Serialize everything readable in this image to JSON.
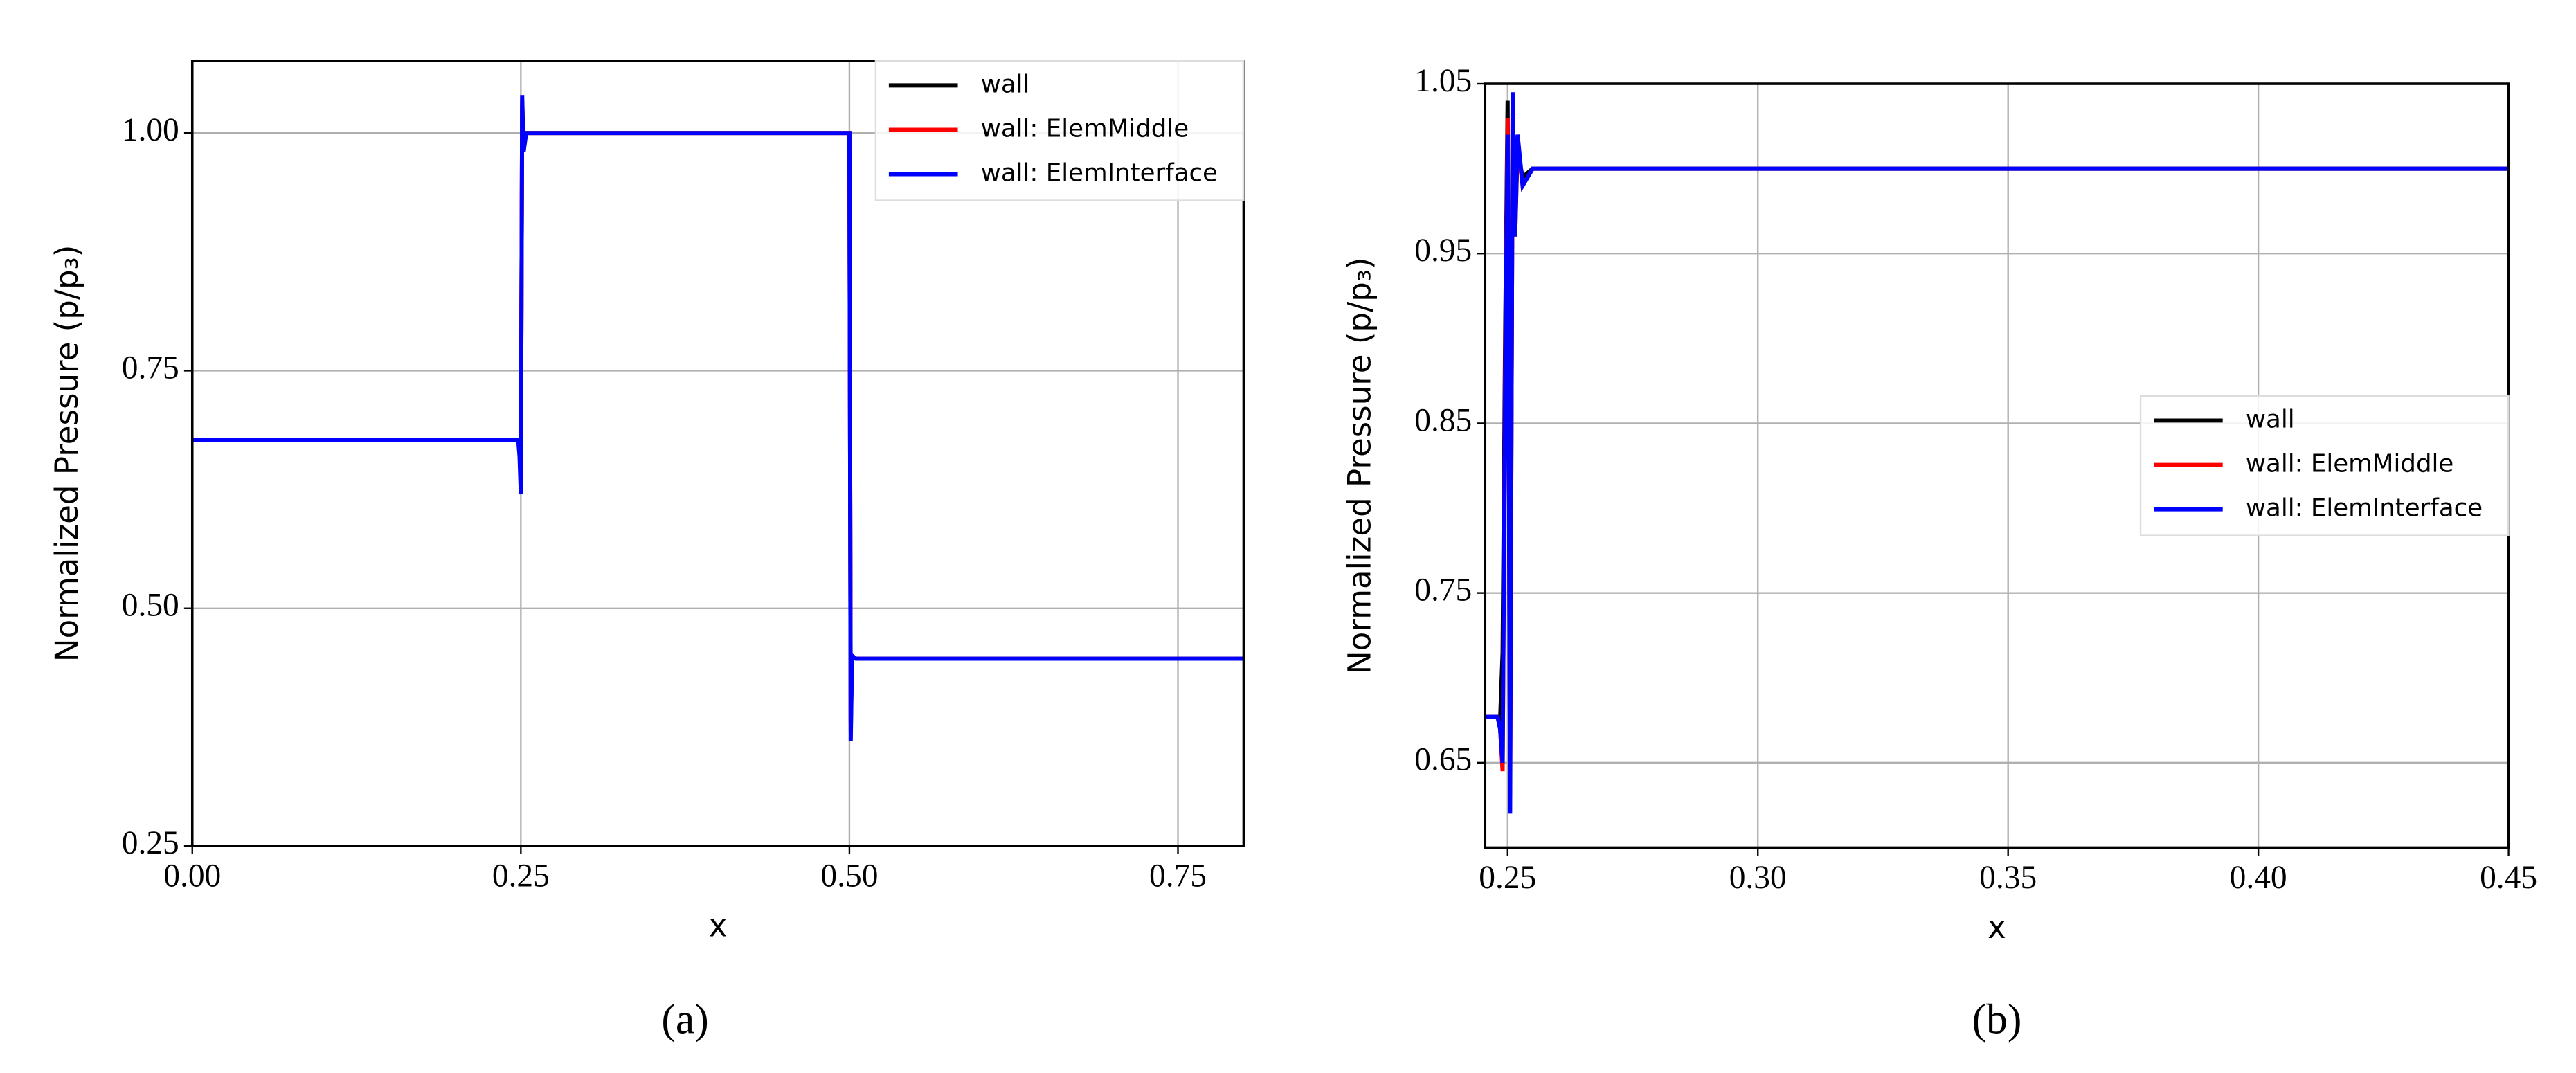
{
  "chart_data": [
    {
      "type": "line",
      "caption": "(a)",
      "xlabel": "x",
      "ylabel": "Normalized Pressure (p/p₃)",
      "x": [
        0,
        0.248,
        0.249,
        0.25,
        0.251,
        0.252,
        0.254,
        0.26,
        0.499,
        0.5,
        0.501,
        0.502,
        0.505,
        0.8
      ],
      "series": [
        {
          "name": "wall",
          "color": "#000000",
          "values": [
            0.677,
            0.677,
            0.67,
            0.64,
            1.03,
            0.98,
            1.0,
            1.0,
            1.0,
            1.0,
            0.38,
            0.45,
            0.447,
            0.447
          ]
        },
        {
          "name": "wall: ElemMiddle",
          "color": "#ff0000",
          "values": [
            0.677,
            0.677,
            0.665,
            0.63,
            1.035,
            0.985,
            1.0,
            1.0,
            1.0,
            1.0,
            0.37,
            0.45,
            0.447,
            0.447
          ]
        },
        {
          "name": "wall: ElemInterface",
          "color": "#0000ff",
          "values": [
            0.677,
            0.677,
            0.66,
            0.62,
            1.04,
            0.98,
            1.0,
            1.0,
            1.0,
            1.0,
            0.36,
            0.45,
            0.447,
            0.447
          ]
        }
      ],
      "xlim": [
        0,
        0.8
      ],
      "ylim": [
        0.25,
        1.076
      ],
      "xticks": [
        {
          "value": 0,
          "label": "0.00"
        },
        0.25,
        {
          "value": 0.5,
          "label": "0.50"
        },
        0.75
      ],
      "yticks": [
        0.25,
        {
          "value": 0.5,
          "label": "0.50"
        },
        0.75,
        {
          "value": 1,
          "label": "1.00"
        }
      ],
      "grid": true,
      "legend": "upper right"
    },
    {
      "type": "line",
      "caption": "(b)",
      "xlabel": "x",
      "ylabel": "Normalized Pressure (p/p₃)",
      "x": [
        0.2455,
        0.248,
        0.2485,
        0.249,
        0.2495,
        0.25,
        0.2505,
        0.251,
        0.2515,
        0.252,
        0.253,
        0.255,
        0.45
      ],
      "series": [
        {
          "name": "wall",
          "color": "#000000",
          "values": [
            0.677,
            0.677,
            0.675,
            0.715,
            0.9,
            1.04,
            0.66,
            1.03,
            0.97,
            1.01,
            0.995,
            1.0,
            1.0
          ]
        },
        {
          "name": "wall: ElemMiddle",
          "color": "#ff0000",
          "values": [
            0.677,
            0.677,
            0.67,
            0.645,
            0.88,
            1.03,
            0.63,
            1.04,
            0.96,
            1.015,
            0.99,
            1.0,
            1.0
          ]
        },
        {
          "name": "wall: ElemInterface",
          "color": "#0000ff",
          "values": [
            0.677,
            0.677,
            0.67,
            0.65,
            0.87,
            1.02,
            0.62,
            1.045,
            0.96,
            1.02,
            0.99,
            1.0,
            1.0
          ]
        }
      ],
      "xlim": [
        0.2455,
        0.45
      ],
      "ylim": [
        0.6,
        1.05
      ],
      "xticks": [
        0.25,
        {
          "value": 0.3,
          "label": "0.30"
        },
        0.35,
        {
          "value": 0.4,
          "label": "0.40"
        },
        0.45
      ],
      "yticks": [
        0.65,
        0.75,
        0.85,
        0.95,
        1.05
      ],
      "grid": true,
      "legend": "center right"
    }
  ]
}
